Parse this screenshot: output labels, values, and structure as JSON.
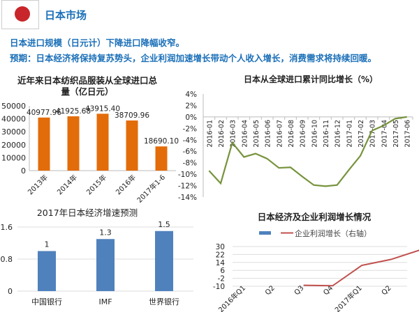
{
  "header": {
    "title": "日本市场",
    "line1": "日本进口规模（日元计）下降进口降幅收窄。",
    "line2": "预期：日本经济将保持复苏势头，企业利润加速增长带动个人收入增长，消费需求将持续回暖。",
    "flag_color": "#c8262a",
    "text_color": "#1a6fb8"
  },
  "chart_data": [
    {
      "type": "bar",
      "title": "近年来日本纺织品服装从全球进口总量（亿日元）",
      "title_lines": [
        "近年来日本纺织品服装从全球进口总",
        "量（亿日元）"
      ],
      "categories": [
        "2013年",
        "2014年",
        "2015年",
        "2016年",
        "2017年1-6"
      ],
      "values": [
        40977.96,
        41925.68,
        43915.4,
        38709.96,
        18690.1
      ],
      "labels": [
        "40977.96",
        "41925.68",
        "43915.40",
        "38709.96",
        "18690.10"
      ],
      "yticks": [
        "0",
        "10000",
        "20000",
        "30000",
        "40000",
        "50000"
      ],
      "ylim": [
        0,
        50000
      ],
      "color": "#e36c0a"
    },
    {
      "type": "line",
      "title": "日本从全球进口累计同比增长（%）",
      "categories": [
        "2016-01",
        "2016-02",
        "2016-03",
        "2016-04",
        "2016-05",
        "2016-06",
        "2016-07",
        "2016-08",
        "2016-09",
        "2016-10",
        "2016-11",
        "2016-12",
        "2017-01",
        "2017-02",
        "2017-03",
        "2017-04",
        "2017-05",
        "2017-06"
      ],
      "values": [
        -9.4,
        -11.6,
        -4.5,
        -7.0,
        -6.4,
        -7.3,
        -8.9,
        -8.8,
        -10.4,
        -11.9,
        -12.1,
        -11.9,
        -9.3,
        -6.8,
        -2.4,
        -1.5,
        -0.3,
        0.0
      ],
      "yticks": [
        "4%",
        "2%",
        "0%",
        "-2%",
        "-4%",
        "-6%",
        "-8%",
        "-10%",
        "-12%",
        "-14%"
      ],
      "ylim": [
        -14,
        4
      ],
      "color": "#77933c"
    },
    {
      "type": "bar",
      "title": "2017年日本经济增速预测",
      "categories": [
        "中国银行",
        "IMF",
        "世界银行"
      ],
      "values": [
        1,
        1.3,
        1.5
      ],
      "labels": [
        "1",
        "1.3",
        "1.5"
      ],
      "yticks": [
        "0",
        "0.8",
        "1.6"
      ],
      "ylim": [
        0,
        1.6
      ],
      "color": "#4f81bd"
    },
    {
      "type": "line",
      "title": "日本经济及企业利润增长情况",
      "legend": [
        "",
        "企业利润增长（右轴）"
      ],
      "categories": [
        "2016年Q1",
        "Q2",
        "Q3",
        "Q4",
        "2017年Q1",
        "Q2"
      ],
      "values": [
        null,
        -9,
        -9.5,
        11,
        17,
        26.5
      ],
      "yticks": [
        "30",
        "22",
        "14",
        "6",
        "-2",
        "-10"
      ],
      "ylim": [
        -10,
        30
      ],
      "color": "#c0504d",
      "legend_bar_color": "#4f81bd"
    }
  ]
}
